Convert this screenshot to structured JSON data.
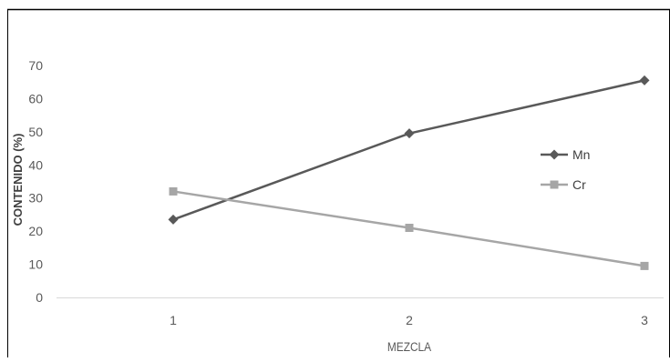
{
  "chart_data": {
    "type": "line",
    "xlabel": "MEZCLA",
    "ylabel": "CONTENIDO  (%)",
    "categories": [
      "1",
      "2",
      "3"
    ],
    "ylim": [
      0,
      70
    ],
    "yticks": [
      0,
      10,
      20,
      30,
      40,
      50,
      60,
      70
    ],
    "grid": false,
    "legend_position": "right",
    "series": [
      {
        "name": "Mn",
        "values": [
          23.5,
          49.5,
          65.5
        ],
        "color": "#595959",
        "marker": "diamond"
      },
      {
        "name": "Cr",
        "values": [
          32,
          21,
          9.5
        ],
        "color": "#a6a6a6",
        "marker": "square"
      }
    ]
  }
}
